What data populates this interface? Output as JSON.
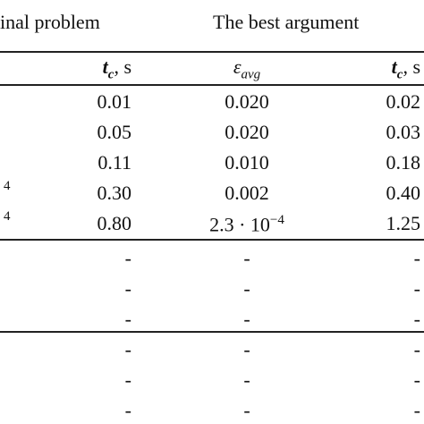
{
  "header": {
    "group_1": "inal problem",
    "group_2": "The best argument"
  },
  "columns": [
    {
      "symbol": "t",
      "subscript": "c",
      "unit": ", s"
    },
    {
      "symbol": "ε",
      "subscript": "avg"
    },
    {
      "symbol": "t",
      "subscript": "c",
      "unit": ", s"
    }
  ],
  "left_fragments": [
    "4",
    "4"
  ],
  "rows": [
    [
      "0.01",
      "0.020",
      "0.02"
    ],
    [
      "0.05",
      "0.020",
      "0.03"
    ],
    [
      "0.11",
      "0.010",
      "0.18"
    ],
    [
      "0.30",
      "0.002",
      "0.40"
    ],
    [
      "0.80",
      {
        "base": "2.3 · 10",
        "exponent": "−4"
      },
      "1.25"
    ],
    [
      "-",
      "-",
      "-"
    ],
    [
      "-",
      "-",
      "-"
    ],
    [
      "-",
      "-",
      "-"
    ],
    [
      "-",
      "-",
      "-"
    ],
    [
      "-",
      "-",
      "-"
    ],
    [
      "-",
      "-",
      "-"
    ]
  ]
}
